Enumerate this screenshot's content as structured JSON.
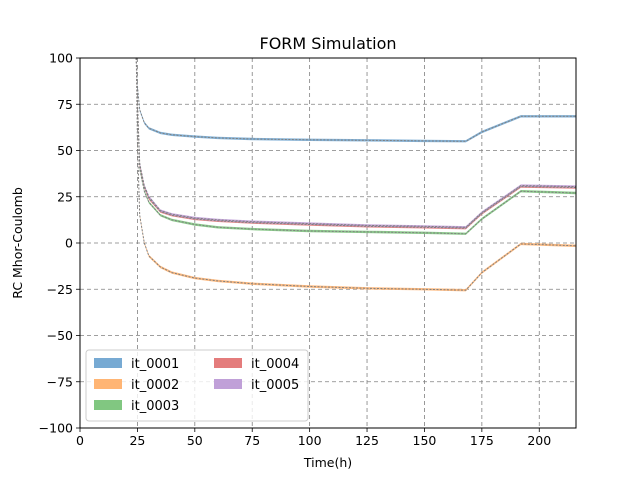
{
  "chart_data": {
    "type": "line",
    "title": "FORM Simulation",
    "xlabel": "Time(h)",
    "ylabel": "RC Mhor-Coulomb",
    "xlim": [
      0,
      216
    ],
    "ylim": [
      -100,
      100
    ],
    "xticks": [
      0,
      25,
      50,
      75,
      100,
      125,
      150,
      175,
      200
    ],
    "yticks": [
      -100,
      -75,
      -50,
      -25,
      0,
      25,
      50,
      75,
      100
    ],
    "xtick_labels": [
      "0",
      "25",
      "50",
      "75",
      "100",
      "125",
      "150",
      "175",
      "200"
    ],
    "ytick_labels": [
      "−100",
      "−75",
      "−50",
      "−25",
      "0",
      "25",
      "50",
      "75",
      "100"
    ],
    "grid": true,
    "grid_style": "dashed",
    "legend": {
      "placement": "lower-left",
      "columns": 2
    },
    "colors": {
      "line": "#808080"
    },
    "series": [
      {
        "name": "it_0001",
        "color": "#77aad3",
        "x": [
          24.5,
          25,
          26,
          28,
          30,
          35,
          40,
          50,
          60,
          75,
          100,
          125,
          150,
          168,
          175,
          192,
          216
        ],
        "y": [
          100,
          85,
          72,
          65,
          62,
          59.5,
          58.5,
          57.5,
          56.8,
          56.2,
          55.8,
          55.5,
          55.2,
          55,
          60,
          68.5,
          68.5
        ]
      },
      {
        "name": "it_0002",
        "color": "#ffb574",
        "x": [
          24.5,
          25,
          26,
          28,
          30,
          35,
          40,
          50,
          60,
          75,
          100,
          125,
          150,
          168,
          175,
          192,
          216
        ],
        "y": [
          100,
          55,
          15,
          0,
          -7,
          -13,
          -16,
          -19,
          -20.5,
          -22,
          -23.5,
          -24.5,
          -25,
          -25.5,
          -16,
          -0.5,
          -1.5
        ]
      },
      {
        "name": "it_0003",
        "color": "#81c781",
        "x": [
          24.5,
          25,
          26,
          28,
          30,
          35,
          40,
          50,
          60,
          75,
          100,
          125,
          150,
          168,
          175,
          192,
          216
        ],
        "y": [
          100,
          75,
          40,
          28,
          22,
          15,
          12.5,
          10,
          8.5,
          7.5,
          6.5,
          6,
          5.5,
          5,
          13,
          28,
          27
        ]
      },
      {
        "name": "it_0004",
        "color": "#e47c7c",
        "x": [
          24.5,
          25,
          26,
          28,
          30,
          35,
          40,
          50,
          60,
          75,
          100,
          125,
          150,
          168,
          175,
          192,
          216
        ],
        "y": [
          100,
          76,
          42,
          30,
          24,
          17,
          15,
          13,
          12,
          11,
          10,
          9,
          8.5,
          8,
          16,
          30.5,
          30
        ]
      },
      {
        "name": "it_0005",
        "color": "#c0a0d8",
        "x": [
          24.5,
          25,
          26,
          28,
          30,
          35,
          40,
          50,
          60,
          75,
          100,
          125,
          150,
          168,
          175,
          192,
          216
        ],
        "y": [
          100,
          77,
          43,
          31,
          25,
          17.5,
          15.5,
          13.5,
          12.5,
          11.5,
          10.5,
          9.5,
          9,
          8.5,
          16.5,
          31,
          30.5
        ]
      }
    ]
  }
}
